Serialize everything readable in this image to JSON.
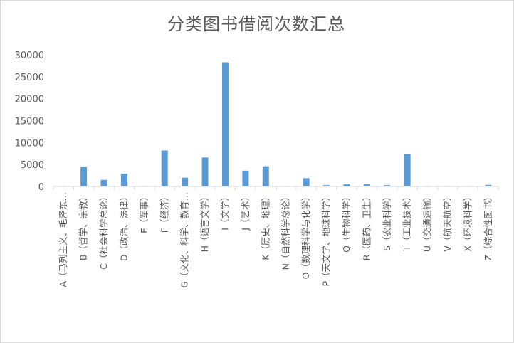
{
  "chart_data": {
    "type": "bar",
    "title": "分类图书借阅次数汇总",
    "xlabel": "",
    "ylabel": "",
    "ylim": [
      0,
      30000
    ],
    "y_ticks": [
      0,
      5000,
      10000,
      15000,
      20000,
      25000,
      30000
    ],
    "grid": false,
    "legend": "none",
    "bar_color": "#5b9bd5",
    "categories": [
      "A（马列主义、毛泽东…",
      "B（哲学、宗教）",
      "C（社会科学总论）",
      "D（政治、法律）",
      "E（军事）",
      "F（经济）",
      "G（文化、科学、教育…",
      "H（语言文学）",
      "I（文学）",
      "J（艺术）",
      "K（历史、地理）",
      "N（自然科学总论）",
      "O（数理科学与化学）",
      "P（天文学、地球科学）",
      "Q（生物科学）",
      "R（医药、卫生）",
      "S（农业科学）",
      "T（工业技术）",
      "U（交通运输）",
      "V（航天航空）",
      "X（环境科学）",
      "Z（综合性图书）"
    ],
    "values": [
      50,
      4500,
      1500,
      2900,
      80,
      8200,
      2000,
      6600,
      28300,
      3600,
      4600,
      60,
      1900,
      300,
      500,
      500,
      300,
      7400,
      40,
      20,
      40,
      350
    ]
  }
}
